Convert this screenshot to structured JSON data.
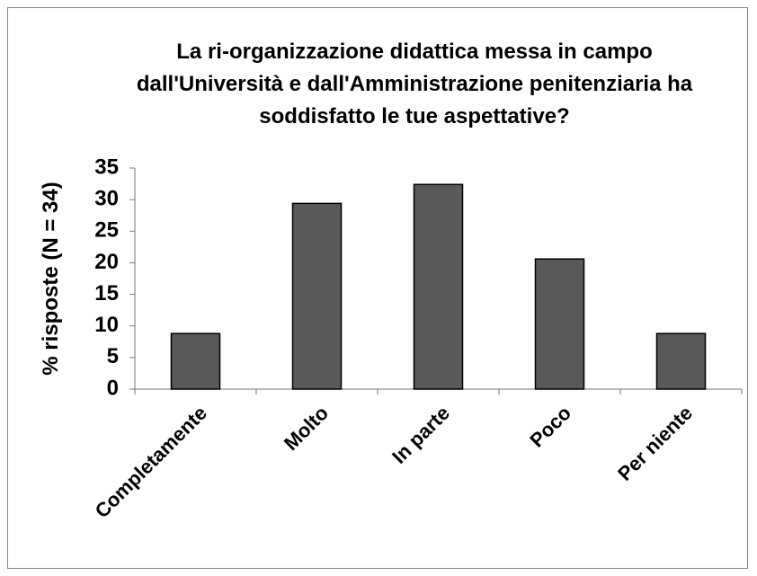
{
  "chart_data": {
    "type": "bar",
    "title": "La ri-organizzazione didattica messa in campo dall'Università e dall'Amministrazione penitenziaria ha soddisfatto le tue aspettative?",
    "y_label": "% risposte (N = 34)",
    "categories": [
      "Completamente",
      "Molto",
      "In parte",
      "Poco",
      "Per niente"
    ],
    "values": [
      8.8,
      29.4,
      32.4,
      20.6,
      8.8
    ],
    "color": "#595959",
    "ylim": [
      0,
      35
    ],
    "yticks": [
      0,
      5,
      10,
      15,
      20,
      25,
      30,
      35
    ],
    "grid": false
  }
}
